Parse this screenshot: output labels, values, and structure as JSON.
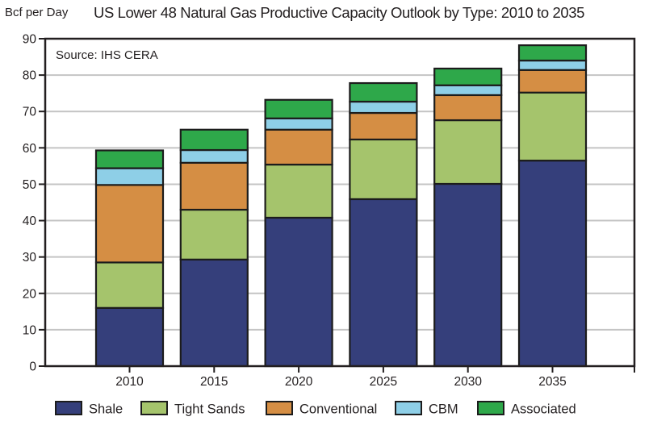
{
  "chart_data": {
    "type": "bar",
    "stacked": true,
    "title": "US Lower 48 Natural Gas Productive Capacity Outlook by Type: 2010 to 2035",
    "ylabel": "Bcf per Day",
    "xlabel": "",
    "annotation": "Source: IHS CERA",
    "ylim": [
      0,
      90
    ],
    "yticks": [
      0,
      10,
      20,
      30,
      40,
      50,
      60,
      70,
      80,
      90
    ],
    "grid": true,
    "legend_position": "bottom",
    "categories": [
      "2010",
      "2015",
      "2020",
      "2025",
      "2030",
      "2035"
    ],
    "series": [
      {
        "name": "Shale",
        "color": "#353f7b",
        "values": [
          16.0,
          29.3,
          40.8,
          45.9,
          50.1,
          56.5
        ]
      },
      {
        "name": "Tight Sands",
        "color": "#a5c46c",
        "values": [
          12.5,
          13.7,
          14.6,
          16.4,
          17.5,
          18.7
        ]
      },
      {
        "name": "Conventional",
        "color": "#d58e44",
        "values": [
          21.3,
          12.9,
          9.6,
          7.3,
          6.9,
          6.2
        ]
      },
      {
        "name": "CBM",
        "color": "#8ecfe7",
        "values": [
          4.6,
          3.5,
          3.1,
          3.1,
          2.7,
          2.6
        ]
      },
      {
        "name": "Associated",
        "color": "#2ea84a",
        "values": [
          4.9,
          5.6,
          5.1,
          5.1,
          4.6,
          4.2
        ]
      }
    ]
  }
}
